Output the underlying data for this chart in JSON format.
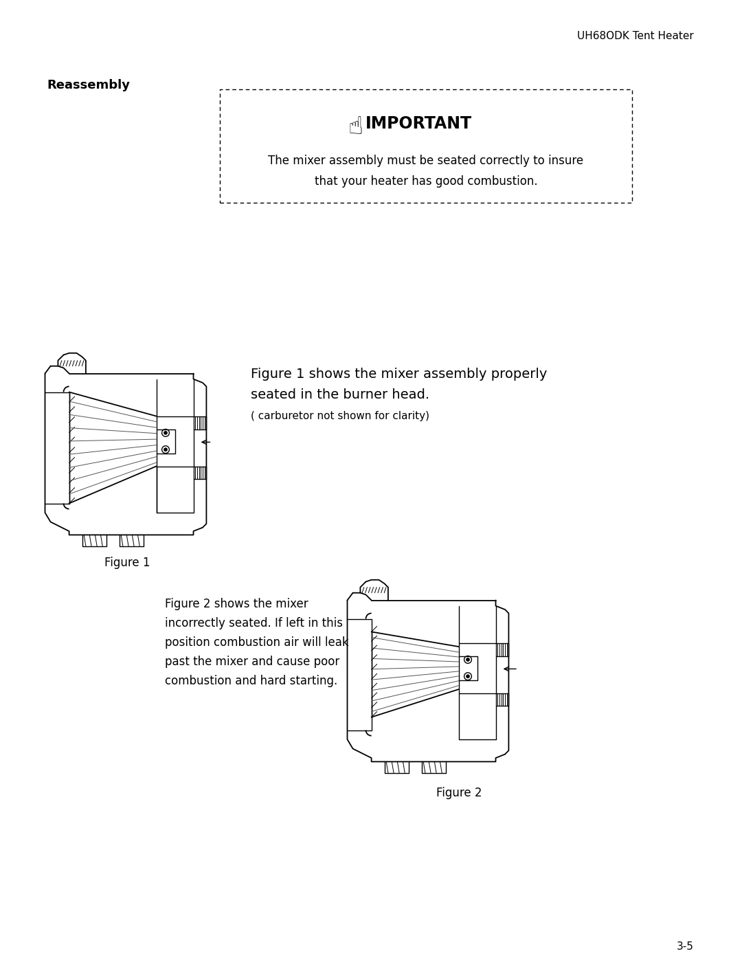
{
  "bg_color": "#ffffff",
  "header_text": "UH68ODK Tent Heater",
  "section_title": "Reassembly",
  "important_title": "IMPORTANT",
  "important_body_line1": "The mixer assembly must be seated correctly to insure",
  "important_body_line2": "that your heater has good combustion.",
  "fig1_caption": "Figure 1",
  "fig1_desc_line1": "Figure 1 shows the mixer assembly properly",
  "fig1_desc_line2": "seated in the burner head.",
  "fig1_desc_line3": "( carburetor not shown for clarity)",
  "fig2_caption": "Figure 2",
  "fig2_desc_line1": "Figure 2 shows the mixer",
  "fig2_desc_line2": "incorrectly seated. If left in this",
  "fig2_desc_line3": "position combustion air will leak",
  "fig2_desc_line4": "past the mixer and cause poor",
  "fig2_desc_line5": "combustion and hard starting.",
  "page_number": "3-5",
  "header_fontsize": 11,
  "section_fontsize": 13,
  "important_title_fontsize": 17,
  "body_fontsize": 12,
  "caption_fontsize": 12,
  "desc1_fontsize": 14,
  "desc3_fontsize": 11,
  "page_fontsize": 11
}
